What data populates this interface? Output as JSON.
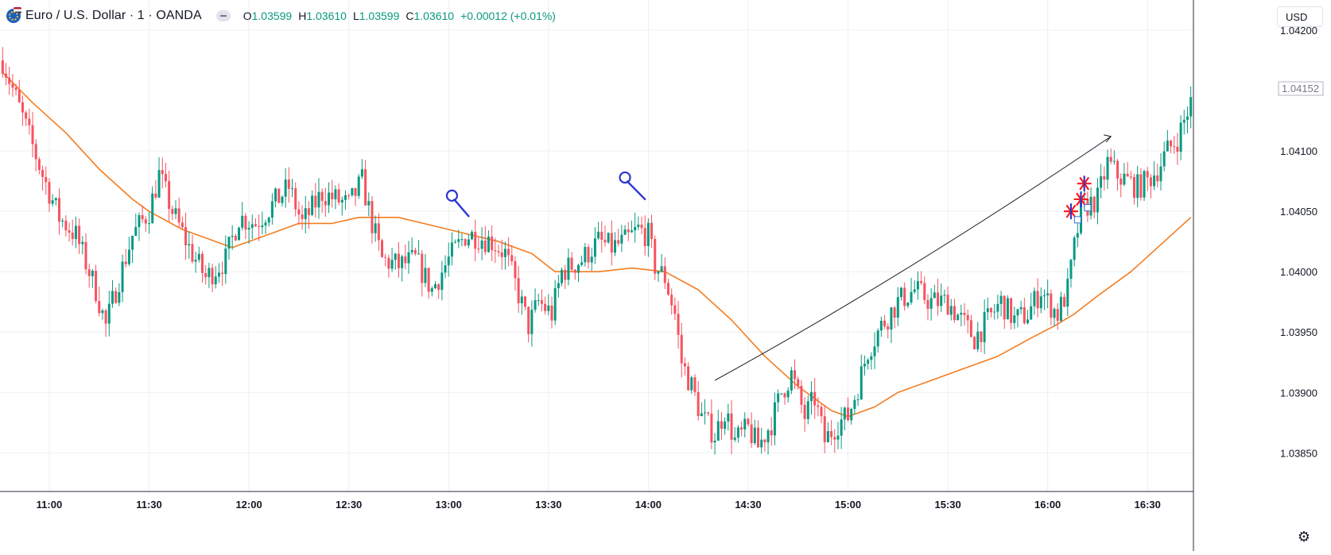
{
  "header": {
    "symbol_title": "Euro / U.S. Dollar · 1 · OANDA",
    "o_label": "O",
    "o_value": "1.03599",
    "h_label": "H",
    "h_value": "1.03610",
    "l_label": "L",
    "l_value": "1.03599",
    "c_label": "C",
    "c_value": "1.03610",
    "change": "+0.00012 (+0.01%)"
  },
  "currency_button": "USD",
  "colors": {
    "up": "#089981",
    "down": "#f7525f",
    "ma": "#f57c1f",
    "grid": "#eef0f4",
    "drawing_blue": "#2b35d1",
    "drawing_red": "#ff1a1a",
    "arrow": "#131722"
  },
  "chart_data": {
    "type": "candlestick",
    "title": "Euro / U.S. Dollar · 1 · OANDA",
    "x_range": [
      "10:46",
      "16:43"
    ],
    "ylim": [
      1.03818,
      1.04225
    ],
    "y_ticks": [
      "1.04200",
      "1.04100",
      "1.04050",
      "1.04000",
      "1.03950",
      "1.03900",
      "1.03850"
    ],
    "x_ticks": [
      "11:00",
      "11:30",
      "12:00",
      "12:30",
      "13:00",
      "13:30",
      "14:00",
      "14:30",
      "15:00",
      "15:30",
      "16:00",
      "16:30"
    ],
    "last_price_label": "1.04152",
    "anchors": [
      [
        "10:46",
        1.04175
      ],
      [
        "10:53",
        1.0412
      ],
      [
        "10:58",
        1.0408
      ],
      [
        "11:03",
        1.04045
      ],
      [
        "11:08",
        1.0403
      ],
      [
        "11:14",
        1.03985
      ],
      [
        "11:17",
        1.03955
      ],
      [
        "11:20",
        1.03985
      ],
      [
        "11:25",
        1.0403
      ],
      [
        "11:30",
        1.0405
      ],
      [
        "11:33",
        1.0408
      ],
      [
        "11:37",
        1.0405
      ],
      [
        "11:42",
        1.0402
      ],
      [
        "11:47",
        1.03995
      ],
      [
        "11:53",
        1.0401
      ],
      [
        "11:57",
        1.04045
      ],
      [
        "12:02",
        1.0404
      ],
      [
        "12:07",
        1.04055
      ],
      [
        "12:12",
        1.0407
      ],
      [
        "12:16",
        1.0404
      ],
      [
        "12:22",
        1.04065
      ],
      [
        "12:30",
        1.04055
      ],
      [
        "12:34",
        1.04075
      ],
      [
        "12:37",
        1.0404
      ],
      [
        "12:40",
        1.0401
      ],
      [
        "12:45",
        1.04005
      ],
      [
        "12:50",
        1.0401
      ],
      [
        "12:55",
        1.03985
      ],
      [
        "13:00",
        1.0401
      ],
      [
        "13:05",
        1.0403
      ],
      [
        "13:08",
        1.0403
      ],
      [
        "13:13",
        1.04025
      ],
      [
        "13:17",
        1.04015
      ],
      [
        "13:20",
        1.0399
      ],
      [
        "13:24",
        1.03955
      ],
      [
        "13:27",
        1.03975
      ],
      [
        "13:31",
        1.03965
      ],
      [
        "13:34",
        1.04
      ],
      [
        "13:40",
        1.0401
      ],
      [
        "13:45",
        1.04025
      ],
      [
        "13:49",
        1.0402
      ],
      [
        "13:53",
        1.04025
      ],
      [
        "13:57",
        1.04035
      ],
      [
        "14:00",
        1.0403
      ],
      [
        "14:02",
        1.04005
      ],
      [
        "14:05",
        1.03995
      ],
      [
        "14:08",
        1.03965
      ],
      [
        "14:10",
        1.03925
      ],
      [
        "14:13",
        1.03905
      ],
      [
        "14:16",
        1.0388
      ],
      [
        "14:20",
        1.03865
      ],
      [
        "14:23",
        1.03885
      ],
      [
        "14:26",
        1.0386
      ],
      [
        "14:30",
        1.0387
      ],
      [
        "14:33",
        1.03855
      ],
      [
        "14:37",
        1.03875
      ],
      [
        "14:40",
        1.039
      ],
      [
        "14:43",
        1.03915
      ],
      [
        "14:47",
        1.0388
      ],
      [
        "14:50",
        1.03895
      ],
      [
        "14:53",
        1.0386
      ],
      [
        "14:57",
        1.03875
      ],
      [
        "15:00",
        1.0388
      ],
      [
        "15:03",
        1.03905
      ],
      [
        "15:06",
        1.03935
      ],
      [
        "15:10",
        1.03955
      ],
      [
        "15:15",
        1.03975
      ],
      [
        "15:20",
        1.03985
      ],
      [
        "15:25",
        1.03975
      ],
      [
        "15:30",
        1.03975
      ],
      [
        "15:34",
        1.0396
      ],
      [
        "15:38",
        1.03945
      ],
      [
        "15:42",
        1.0396
      ],
      [
        "15:46",
        1.03975
      ],
      [
        "15:50",
        1.0396
      ],
      [
        "15:54",
        1.03965
      ],
      [
        "15:58",
        1.03985
      ],
      [
        "16:00",
        1.03975
      ],
      [
        "16:03",
        1.03965
      ],
      [
        "16:06",
        1.03985
      ],
      [
        "16:08",
        1.0402
      ],
      [
        "16:10",
        1.0405
      ],
      [
        "16:12",
        1.04055
      ],
      [
        "16:15",
        1.0406
      ],
      [
        "16:18",
        1.0409
      ],
      [
        "16:21",
        1.0408
      ],
      [
        "16:24",
        1.04075
      ],
      [
        "16:27",
        1.0407
      ],
      [
        "16:30",
        1.04075
      ],
      [
        "16:33",
        1.04085
      ],
      [
        "16:36",
        1.041
      ],
      [
        "16:39",
        1.0411
      ],
      [
        "16:43",
        1.0414
      ]
    ],
    "moving_average": [
      [
        "10:46",
        1.04165
      ],
      [
        "10:55",
        1.0414
      ],
      [
        "11:05",
        1.04115
      ],
      [
        "11:15",
        1.04085
      ],
      [
        "11:25",
        1.0406
      ],
      [
        "11:30",
        1.0405
      ],
      [
        "11:40",
        1.04035
      ],
      [
        "11:50",
        1.04025
      ],
      [
        "11:55",
        1.0402
      ],
      [
        "12:05",
        1.0403
      ],
      [
        "12:15",
        1.0404
      ],
      [
        "12:25",
        1.0404
      ],
      [
        "12:33",
        1.04045
      ],
      [
        "12:45",
        1.04045
      ],
      [
        "13:00",
        1.04035
      ],
      [
        "13:15",
        1.04025
      ],
      [
        "13:25",
        1.04015
      ],
      [
        "13:32",
        1.04
      ],
      [
        "13:45",
        1.04
      ],
      [
        "13:55",
        1.04003
      ],
      [
        "14:05",
        1.04
      ],
      [
        "14:15",
        1.03985
      ],
      [
        "14:25",
        1.0396
      ],
      [
        "14:35",
        1.0393
      ],
      [
        "14:45",
        1.03905
      ],
      [
        "14:55",
        1.03885
      ],
      [
        "15:00",
        1.0388
      ],
      [
        "15:08",
        1.03888
      ],
      [
        "15:15",
        1.039
      ],
      [
        "15:25",
        1.0391
      ],
      [
        "15:35",
        1.0392
      ],
      [
        "15:45",
        1.0393
      ],
      [
        "15:55",
        1.03945
      ],
      [
        "16:02",
        1.03955
      ],
      [
        "16:08",
        1.03965
      ],
      [
        "16:15",
        1.0398
      ],
      [
        "16:25",
        1.04
      ],
      [
        "16:35",
        1.04025
      ],
      [
        "16:43",
        1.04045
      ]
    ],
    "drawings": {
      "trend_arrow": {
        "from": [
          "14:20",
          1.0391
        ],
        "to": [
          "16:19",
          1.04112
        ]
      },
      "pins": [
        {
          "circle": [
            "13:01",
            1.04063
          ],
          "tail": [
            "13:06",
            1.04046
          ]
        },
        {
          "circle": [
            "13:53",
            1.04078
          ],
          "tail": [
            "13:59",
            1.0406
          ]
        }
      ],
      "stars": [
        {
          "at": [
            "16:07",
            1.0405
          ],
          "color": "red"
        },
        {
          "at": [
            "16:10",
            1.0406
          ],
          "color": "red"
        },
        {
          "at": [
            "16:11",
            1.04073
          ],
          "color": "red"
        }
      ],
      "squares": [
        {
          "at": [
            "16:09",
            1.04043
          ]
        },
        {
          "at": [
            "16:12",
            1.04053
          ]
        }
      ]
    }
  }
}
